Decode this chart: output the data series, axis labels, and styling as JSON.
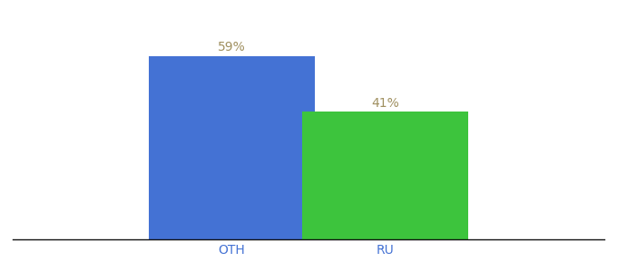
{
  "categories": [
    "OTH",
    "RU"
  ],
  "values": [
    59,
    41
  ],
  "bar_colors": [
    "#4472d4",
    "#3dc43d"
  ],
  "label_color": "#a09060",
  "label_fontsize": 10,
  "tick_label_fontsize": 10,
  "tick_label_color": "#4472d4",
  "background_color": "#ffffff",
  "bar_width": 0.28,
  "ylim": [
    0,
    70
  ],
  "xlim": [
    0,
    1
  ]
}
